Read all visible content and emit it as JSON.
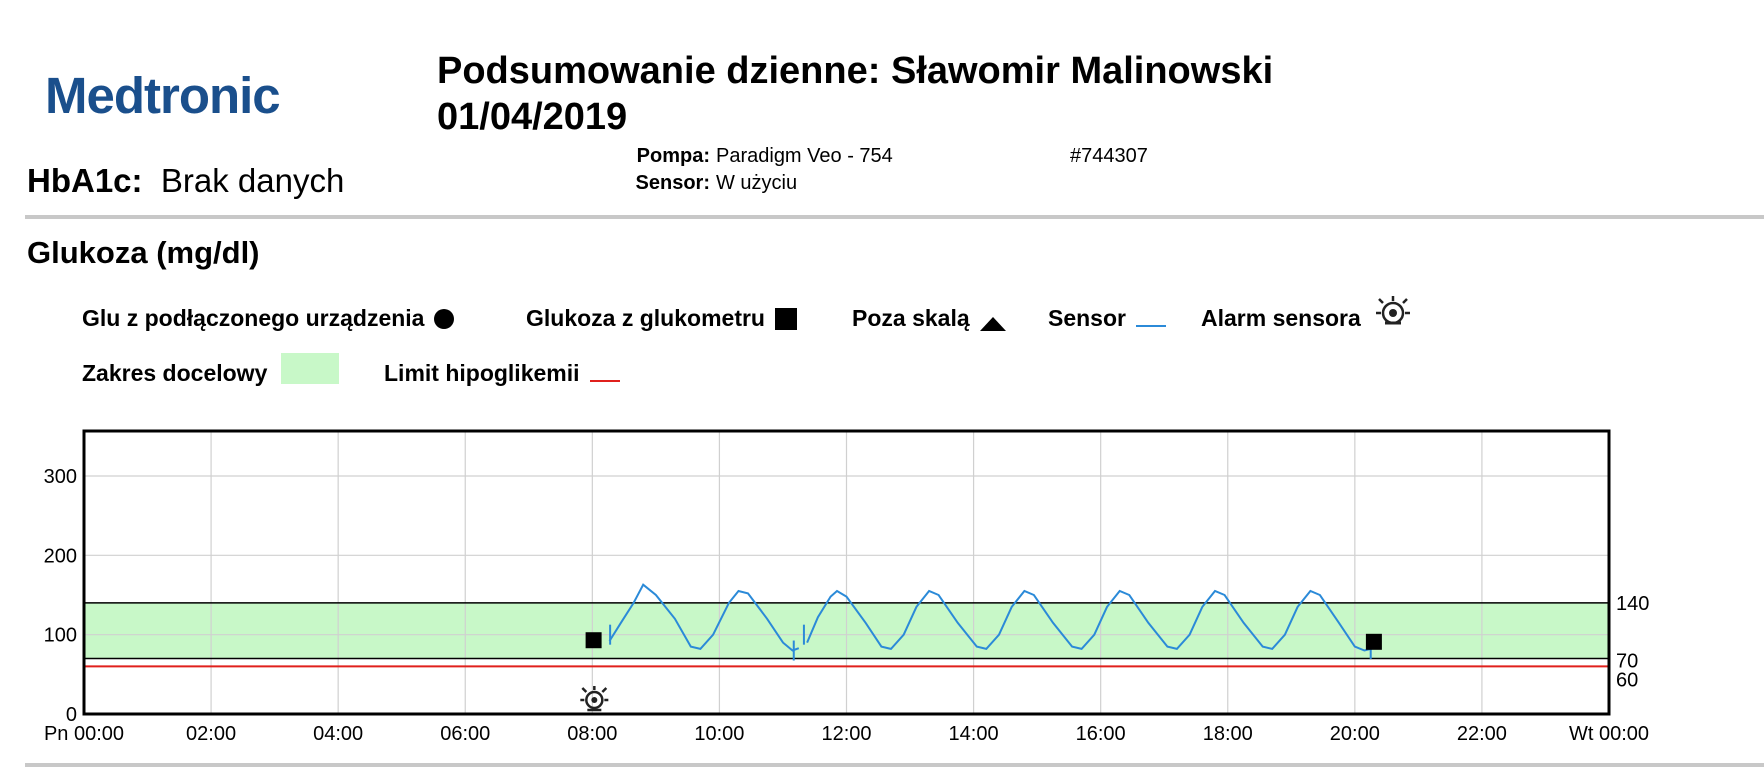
{
  "header": {
    "logo": "Medtronic",
    "title_line1": "Podsumowanie dzienne: Sławomir Malinowski",
    "title_line2": "01/04/2019",
    "hba1c_label": "HbA1c:",
    "hba1c_value": "Brak danych",
    "pump_label": "Pompa:",
    "pump_value": "Paradigm Veo - 754",
    "pump_serial": "#744307",
    "sensor_label": "Sensor:",
    "sensor_value": "W użyciu"
  },
  "section_title": "Glukoza (mg/dl)",
  "legend": {
    "linked_device": "Glu z podłączonego urządzenia",
    "meter": "Glukoza z glukometru",
    "off_scale": "Poza skalą",
    "sensor": "Sensor",
    "sensor_alarm": "Alarm sensora",
    "target_range": "Zakres docelowy",
    "hypo_limit": "Limit hipoglikemii"
  },
  "colors": {
    "sensor": "#2b8ad8",
    "target_fill": "#c8f8c8",
    "hypo": "#e0201c",
    "logo": "#1a4f8c"
  },
  "chart_data": {
    "type": "line",
    "xlim": [
      0,
      24
    ],
    "ylim": [
      0,
      350
    ],
    "x_tick_values": [
      0,
      2,
      4,
      6,
      8,
      10,
      12,
      14,
      16,
      18,
      20,
      22,
      24
    ],
    "x_tick_labels": [
      "Pn 00:00",
      "02:00",
      "04:00",
      "06:00",
      "08:00",
      "10:00",
      "12:00",
      "14:00",
      "16:00",
      "18:00",
      "20:00",
      "22:00",
      "Wt 00:00"
    ],
    "y_ticks": [
      0,
      100,
      200,
      300
    ],
    "right_ticks": [
      140,
      70,
      60
    ],
    "target_range": [
      70,
      140
    ],
    "hypo_limit": 60,
    "grid": true,
    "series": [
      {
        "name": "Sensor",
        "segments": [
          [
            [
              8.27,
              92
            ],
            [
              8.45,
              115
            ],
            [
              8.65,
              140
            ],
            [
              8.8,
              163
            ],
            [
              9.0,
              150
            ],
            [
              9.3,
              120
            ],
            [
              9.55,
              85
            ],
            [
              9.7,
              82
            ],
            [
              9.9,
              100
            ],
            [
              10.15,
              140
            ],
            [
              10.3,
              155
            ],
            [
              10.45,
              152
            ],
            [
              10.75,
              120
            ],
            [
              11.0,
              90
            ],
            [
              11.15,
              80
            ],
            [
              11.25,
              83
            ]
          ],
          [
            [
              11.38,
              90
            ],
            [
              11.55,
              122
            ],
            [
              11.75,
              148
            ],
            [
              11.85,
              155
            ],
            [
              12.0,
              148
            ],
            [
              12.3,
              115
            ],
            [
              12.55,
              85
            ],
            [
              12.7,
              82
            ],
            [
              12.9,
              100
            ],
            [
              13.1,
              135
            ],
            [
              13.3,
              155
            ],
            [
              13.45,
              150
            ],
            [
              13.75,
              115
            ],
            [
              14.05,
              85
            ],
            [
              14.2,
              82
            ],
            [
              14.4,
              100
            ],
            [
              14.6,
              135
            ],
            [
              14.8,
              155
            ],
            [
              14.95,
              150
            ],
            [
              15.25,
              115
            ],
            [
              15.55,
              85
            ],
            [
              15.7,
              82
            ],
            [
              15.9,
              100
            ],
            [
              16.1,
              135
            ],
            [
              16.3,
              155
            ],
            [
              16.45,
              150
            ],
            [
              16.75,
              115
            ],
            [
              17.05,
              85
            ],
            [
              17.2,
              82
            ],
            [
              17.4,
              100
            ],
            [
              17.6,
              135
            ],
            [
              17.8,
              155
            ],
            [
              17.95,
              150
            ],
            [
              18.25,
              115
            ],
            [
              18.55,
              85
            ],
            [
              18.7,
              82
            ],
            [
              18.9,
              100
            ],
            [
              19.1,
              135
            ],
            [
              19.3,
              155
            ],
            [
              19.45,
              150
            ],
            [
              19.75,
              115
            ],
            [
              20.0,
              85
            ],
            [
              20.15,
              80
            ],
            [
              20.3,
              83
            ]
          ]
        ]
      },
      {
        "name": "Glukoza z glukometru",
        "points": [
          [
            8.02,
            93
          ],
          [
            20.3,
            91
          ]
        ]
      }
    ],
    "sensor_alarms": [
      8.0
    ],
    "calibration_marks": [
      [
        8.28,
        100
      ],
      [
        11.17,
        80
      ],
      [
        11.33,
        100
      ],
      [
        20.25,
        82
      ]
    ]
  }
}
